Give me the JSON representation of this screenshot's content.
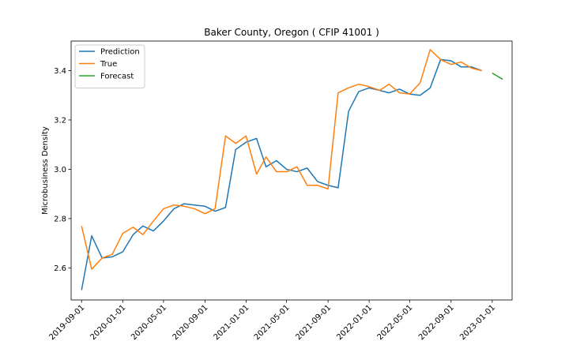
{
  "chart_data": {
    "type": "line",
    "title": "Baker County, Oregon ( CFIP 41001 )",
    "xlabel": "",
    "ylabel": "Microbusiness Density",
    "ylim": [
      2.47,
      3.52
    ],
    "xlim": [
      "2019-08-01",
      "2023-03-01"
    ],
    "x_ticks": [
      "2019-09-01",
      "2020-01-01",
      "2020-05-01",
      "2020-09-01",
      "2021-01-01",
      "2021-05-01",
      "2021-09-01",
      "2022-01-01",
      "2022-05-01",
      "2022-09-01",
      "2023-01-01"
    ],
    "y_ticks": [
      2.6,
      2.8,
      3.0,
      3.2,
      3.4
    ],
    "y_tick_labels": [
      "2.6",
      "2.8",
      "3.0",
      "3.2",
      "3.4"
    ],
    "grid": false,
    "legend_position": "top-left",
    "series": [
      {
        "name": "Prediction",
        "color": "#1f77b4",
        "x": [
          "2019-09-01",
          "2019-10-01",
          "2019-11-01",
          "2019-12-01",
          "2020-01-01",
          "2020-02-01",
          "2020-03-01",
          "2020-04-01",
          "2020-05-01",
          "2020-06-01",
          "2020-07-01",
          "2020-08-01",
          "2020-09-01",
          "2020-10-01",
          "2020-11-01",
          "2020-12-01",
          "2021-01-01",
          "2021-02-01",
          "2021-03-01",
          "2021-04-01",
          "2021-05-01",
          "2021-06-01",
          "2021-07-01",
          "2021-08-01",
          "2021-09-01",
          "2021-10-01",
          "2021-11-01",
          "2021-12-01",
          "2022-01-01",
          "2022-02-01",
          "2022-03-01",
          "2022-04-01",
          "2022-05-01",
          "2022-06-01",
          "2022-07-01",
          "2022-08-01",
          "2022-09-01",
          "2022-10-01",
          "2022-11-01",
          "2022-12-01"
        ],
        "values": [
          2.51,
          2.73,
          2.64,
          2.645,
          2.665,
          2.735,
          2.77,
          2.75,
          2.79,
          2.84,
          2.86,
          2.855,
          2.85,
          2.83,
          2.845,
          3.08,
          3.11,
          3.125,
          3.01,
          3.035,
          3.0,
          2.99,
          3.005,
          2.95,
          2.935,
          2.925,
          3.235,
          3.315,
          3.33,
          3.32,
          3.31,
          3.325,
          3.305,
          3.3,
          3.33,
          3.445,
          3.44,
          3.415,
          3.415,
          3.4
        ]
      },
      {
        "name": "True",
        "color": "#ff7f0e",
        "x": [
          "2019-09-01",
          "2019-10-01",
          "2019-11-01",
          "2019-12-01",
          "2020-01-01",
          "2020-02-01",
          "2020-03-01",
          "2020-04-01",
          "2020-05-01",
          "2020-06-01",
          "2020-07-01",
          "2020-08-01",
          "2020-09-01",
          "2020-10-01",
          "2020-11-01",
          "2020-12-01",
          "2021-01-01",
          "2021-02-01",
          "2021-03-01",
          "2021-04-01",
          "2021-05-01",
          "2021-06-01",
          "2021-07-01",
          "2021-08-01",
          "2021-09-01",
          "2021-10-01",
          "2021-11-01",
          "2021-12-01",
          "2022-01-01",
          "2022-02-01",
          "2022-03-01",
          "2022-04-01",
          "2022-05-01",
          "2022-06-01",
          "2022-07-01",
          "2022-08-01",
          "2022-09-01",
          "2022-10-01",
          "2022-11-01",
          "2022-12-01"
        ],
        "values": [
          2.77,
          2.595,
          2.64,
          2.655,
          2.74,
          2.765,
          2.735,
          2.79,
          2.84,
          2.855,
          2.85,
          2.84,
          2.82,
          2.84,
          3.135,
          3.105,
          3.135,
          2.98,
          3.05,
          2.99,
          2.99,
          3.01,
          2.935,
          2.935,
          2.92,
          3.31,
          3.33,
          3.345,
          3.335,
          3.32,
          3.345,
          3.31,
          3.305,
          3.35,
          3.485,
          3.445,
          3.425,
          3.435,
          3.41,
          3.4
        ]
      },
      {
        "name": "Forecast",
        "color": "#2ca02c",
        "x": [
          "2023-01-01",
          "2023-02-01"
        ],
        "values": [
          3.39,
          3.365
        ]
      }
    ]
  }
}
